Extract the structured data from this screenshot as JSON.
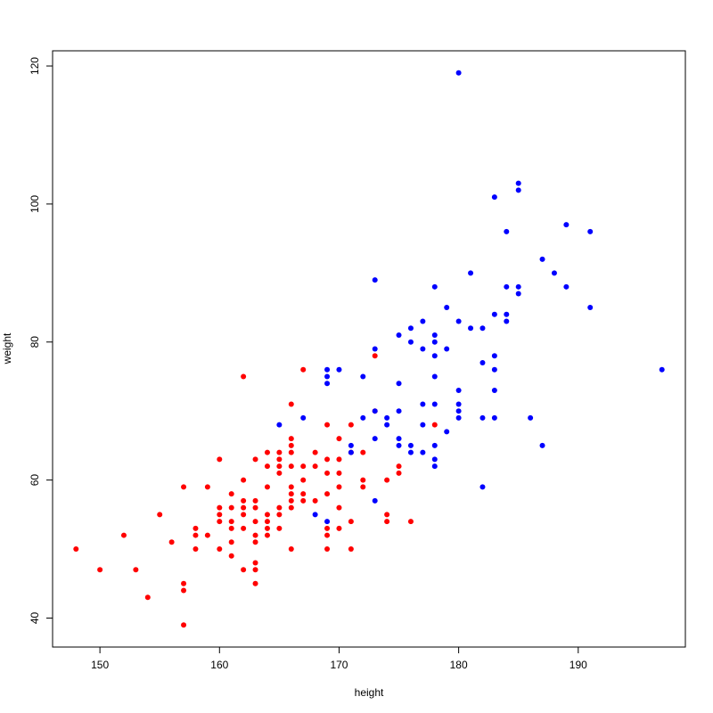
{
  "chart_data": {
    "type": "scatter",
    "x_label": "height",
    "y_label": "weight",
    "xlim": [
      146.04,
      198.96
    ],
    "ylim": [
      35.8,
      122.2
    ],
    "xticks": [
      150,
      160,
      170,
      180,
      190
    ],
    "yticks": [
      40,
      60,
      80,
      100,
      120
    ],
    "series": [
      {
        "color": "#ff0000",
        "x": [
          148,
          150,
          152,
          153,
          154,
          155,
          156,
          157,
          157,
          157,
          157,
          158,
          158,
          158,
          159,
          159,
          160,
          160,
          160,
          160,
          160,
          161,
          161,
          161,
          161,
          161,
          161,
          162,
          162,
          162,
          162,
          162,
          162,
          162,
          163,
          163,
          163,
          163,
          163,
          163,
          163,
          163,
          163,
          164,
          164,
          164,
          164,
          164,
          164,
          164,
          165,
          165,
          165,
          165,
          165,
          165,
          165,
          166,
          166,
          166,
          166,
          166,
          166,
          166,
          166,
          166,
          166,
          167,
          167,
          167,
          167,
          167,
          168,
          168,
          168,
          169,
          169,
          169,
          169,
          169,
          169,
          169,
          170,
          170,
          170,
          170,
          170,
          170,
          171,
          171,
          171,
          171,
          172,
          172,
          172,
          173,
          173,
          174,
          174,
          174,
          175,
          175,
          176,
          178
        ],
        "values": [
          50,
          47,
          52,
          47,
          43,
          55,
          51,
          59,
          45,
          44,
          39,
          53,
          52,
          50,
          59,
          52,
          63,
          56,
          55,
          54,
          50,
          58,
          56,
          54,
          53,
          51,
          49,
          75,
          60,
          57,
          56,
          55,
          53,
          47,
          63,
          57,
          56,
          54,
          52,
          51,
          48,
          47,
          45,
          64,
          62,
          59,
          55,
          54,
          53,
          52,
          64,
          63,
          62,
          61,
          56,
          55,
          53,
          71,
          66,
          65,
          64,
          62,
          59,
          58,
          57,
          56,
          50,
          76,
          62,
          60,
          58,
          57,
          64,
          62,
          57,
          68,
          63,
          61,
          58,
          53,
          52,
          50,
          66,
          63,
          61,
          59,
          56,
          53,
          68,
          64,
          54,
          50,
          64,
          60,
          59,
          78,
          70,
          60,
          55,
          54,
          62,
          61,
          54,
          68
        ]
      },
      {
        "color": "#0000ff",
        "x": [
          180,
          185,
          185,
          183,
          184,
          189,
          191,
          187,
          188,
          181,
          173,
          178,
          184,
          185,
          189,
          185,
          179,
          191,
          183,
          184,
          184,
          177,
          180,
          176,
          181,
          182,
          175,
          178,
          176,
          178,
          173,
          177,
          179,
          178,
          183,
          169,
          170,
          169,
          169,
          172,
          178,
          183,
          182,
          175,
          197,
          180,
          183,
          174,
          174,
          167,
          172,
          180,
          180,
          178,
          177,
          182,
          183,
          186,
          180,
          173,
          175,
          165,
          177,
          179,
          173,
          175,
          175,
          176,
          178,
          176,
          177,
          171,
          171,
          178,
          178,
          187,
          182,
          173,
          168,
          169
        ],
        "values": [
          119,
          103,
          102,
          101,
          96,
          97,
          96,
          92,
          90,
          90,
          89,
          88,
          88,
          88,
          88,
          87,
          85,
          85,
          84,
          84,
          83,
          83,
          83,
          82,
          82,
          82,
          81,
          81,
          80,
          80,
          79,
          79,
          79,
          78,
          78,
          76,
          76,
          75,
          74,
          75,
          75,
          76,
          77,
          74,
          76,
          73,
          73,
          69,
          68,
          69,
          69,
          71,
          70,
          71,
          71,
          69,
          69,
          69,
          69,
          70,
          70,
          68,
          68,
          67,
          66,
          66,
          65,
          65,
          65,
          64,
          64,
          65,
          64,
          63,
          62,
          65,
          59,
          57,
          55,
          54
        ]
      }
    ]
  }
}
